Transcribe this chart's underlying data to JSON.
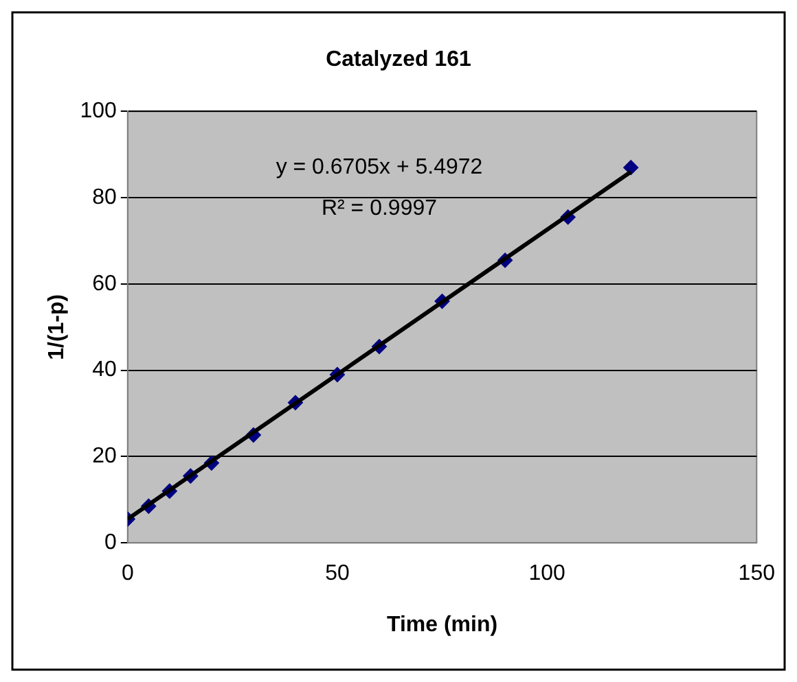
{
  "chart_data": {
    "type": "scatter",
    "title": "Catalyzed 161",
    "xlabel": "Time (min)",
    "ylabel": "1/(1-p)",
    "xlim": [
      0,
      150
    ],
    "xticks": [
      0,
      50,
      100,
      150
    ],
    "ylim": [
      0,
      100
    ],
    "yticks": [
      0,
      20,
      40,
      60,
      80,
      100
    ],
    "grid": "y",
    "legend": false,
    "series": [
      {
        "type": "scatter",
        "color": "#000080",
        "marker": "diamond",
        "x": [
          0,
          5,
          10,
          15,
          20,
          30,
          40,
          50,
          60,
          75,
          90,
          105,
          120
        ],
        "values": [
          5.5,
          8.5,
          12,
          15.5,
          18.5,
          25,
          32.5,
          39,
          45.5,
          56,
          65.5,
          75.5,
          87
        ]
      },
      {
        "type": "line",
        "color": "#000000",
        "marker": "none",
        "x": [
          0,
          120
        ],
        "values": [
          5.5,
          86
        ]
      }
    ],
    "annotations": [
      "y = 0.6705x + 5.4972",
      "R² = 0.9997"
    ]
  }
}
